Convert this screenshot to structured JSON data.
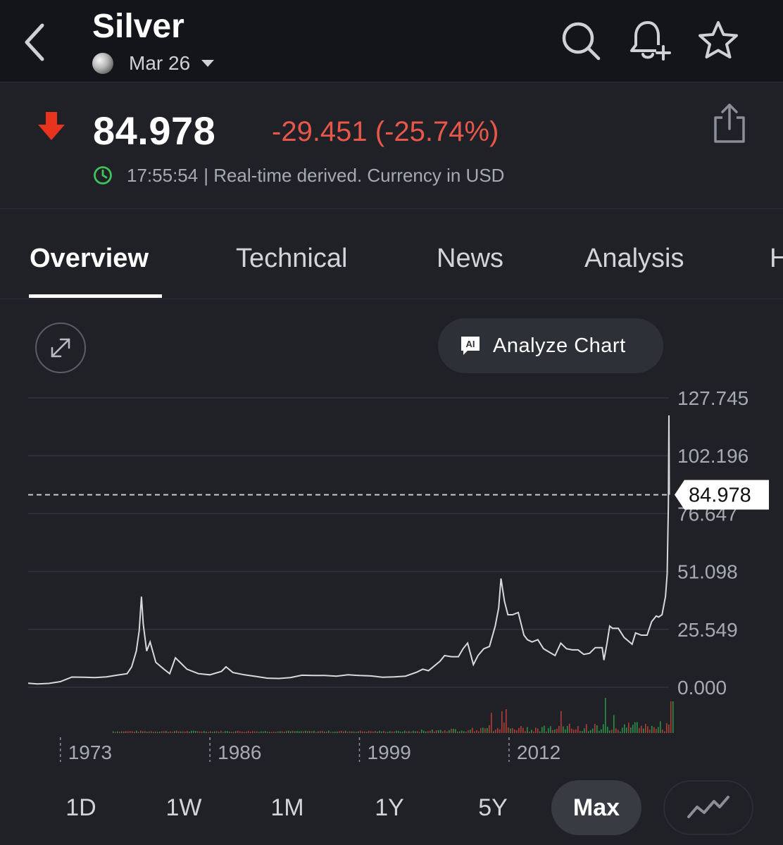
{
  "header": {
    "title": "Silver",
    "contract": "Mar 26",
    "icons": [
      "chevron-left-icon",
      "silver-coin-icon",
      "caret-down-icon",
      "search-icon",
      "bell-plus-icon",
      "star-icon"
    ]
  },
  "quote": {
    "price": "84.978",
    "change": "-29.451 (-25.74%)",
    "time": "17:55:54",
    "note": "| Real-time derived. Currency in USD",
    "colors": {
      "down": "#e8574a",
      "arrow": "#e8331f",
      "clock": "#3fc35a"
    },
    "icons": [
      "down-arrow-icon",
      "share-icon",
      "clock-icon"
    ]
  },
  "tabs": [
    {
      "label": "Overview",
      "active": true
    },
    {
      "label": "Technical"
    },
    {
      "label": "News"
    },
    {
      "label": "Analysis"
    },
    {
      "label": "H"
    }
  ],
  "toolbar": {
    "analyze_label": "Analyze Chart",
    "icons": [
      "expand-icon",
      "ai-icon"
    ]
  },
  "chart_data": {
    "type": "line",
    "y_ticks": [
      "127.745",
      "102.196",
      "76.647",
      "51.098",
      "25.549",
      "0.000"
    ],
    "x_ticks": [
      "1973",
      "1986",
      "1999",
      "2012"
    ],
    "ylim": [
      0,
      127.745
    ],
    "xlim": [
      1970.2,
      2025.9
    ],
    "last_price_label": "84.978",
    "last_price": 84.978,
    "grid": true,
    "series": [
      {
        "x": [
          1970.2,
          1971.0,
          1972.0,
          1973.0,
          1974.0,
          1975.0,
          1976.0,
          1977.0,
          1978.0,
          1978.8,
          1979.2,
          1979.6,
          1979.85,
          1980.05,
          1980.2,
          1980.5,
          1980.8,
          1981.3,
          1982.0,
          1982.5,
          1983.0,
          1983.4,
          1984.0,
          1985.0,
          1986.0,
          1987.0,
          1987.4,
          1988.0,
          1989.0,
          1990.0,
          1991.0,
          1992.0,
          1993.0,
          1994.0,
          1995.0,
          1996.0,
          1997.0,
          1998.0,
          1999.0,
          2000.0,
          2001.0,
          2002.0,
          2003.0,
          2004.0,
          2004.5,
          2005.0,
          2006.0,
          2006.4,
          2007.0,
          2007.6,
          2008.0,
          2008.4,
          2008.9,
          2009.3,
          2009.8,
          2010.3,
          2010.8,
          2011.1,
          2011.3,
          2011.6,
          2011.9,
          2012.3,
          2012.8,
          2013.3,
          2013.6,
          2014.0,
          2014.5,
          2015.0,
          2015.5,
          2016.0,
          2016.5,
          2017.0,
          2017.5,
          2018.0,
          2018.5,
          2019.0,
          2019.5,
          2020.1,
          2020.25,
          2020.5,
          2020.75,
          2021.0,
          2021.5,
          2022.0,
          2022.7,
          2023.0,
          2023.5,
          2024.0,
          2024.4,
          2024.8,
          2025.0,
          2025.3,
          2025.6,
          2025.75,
          2025.85,
          2025.9,
          2025.93
        ],
        "y": [
          1.8,
          1.5,
          1.7,
          2.5,
          4.5,
          4.4,
          4.3,
          4.6,
          5.4,
          6.0,
          9.0,
          16.0,
          25.0,
          40.0,
          28.0,
          16.0,
          20.0,
          11.0,
          8.0,
          6.0,
          13.0,
          11.0,
          8.0,
          6.0,
          5.5,
          7.0,
          9.0,
          6.5,
          5.5,
          4.8,
          4.0,
          3.9,
          4.3,
          5.3,
          5.2,
          5.2,
          4.9,
          5.5,
          5.2,
          5.0,
          4.4,
          4.6,
          4.9,
          6.7,
          8.0,
          7.3,
          11.5,
          14.0,
          13.5,
          13.5,
          17.0,
          19.5,
          10.0,
          14.0,
          17.0,
          18.0,
          27.0,
          35.0,
          48.0,
          38.0,
          32.0,
          32.0,
          33.0,
          23.0,
          21.0,
          20.0,
          21.0,
          17.0,
          15.5,
          14.0,
          19.5,
          17.0,
          16.5,
          16.5,
          14.5,
          15.0,
          17.5,
          17.5,
          12.0,
          19.0,
          27.0,
          26.0,
          26.0,
          22.0,
          19.0,
          24.0,
          23.0,
          23.0,
          29.0,
          31.5,
          31.0,
          32.0,
          40.0,
          50.0,
          80.0,
          120.0,
          84.978
        ]
      }
    ]
  },
  "ranges": [
    {
      "label": "1D"
    },
    {
      "label": "1W"
    },
    {
      "label": "1M"
    },
    {
      "label": "1Y"
    },
    {
      "label": "5Y"
    },
    {
      "label": "Max",
      "active": true
    }
  ],
  "charttype": {
    "icon": "line-chart-icon"
  }
}
